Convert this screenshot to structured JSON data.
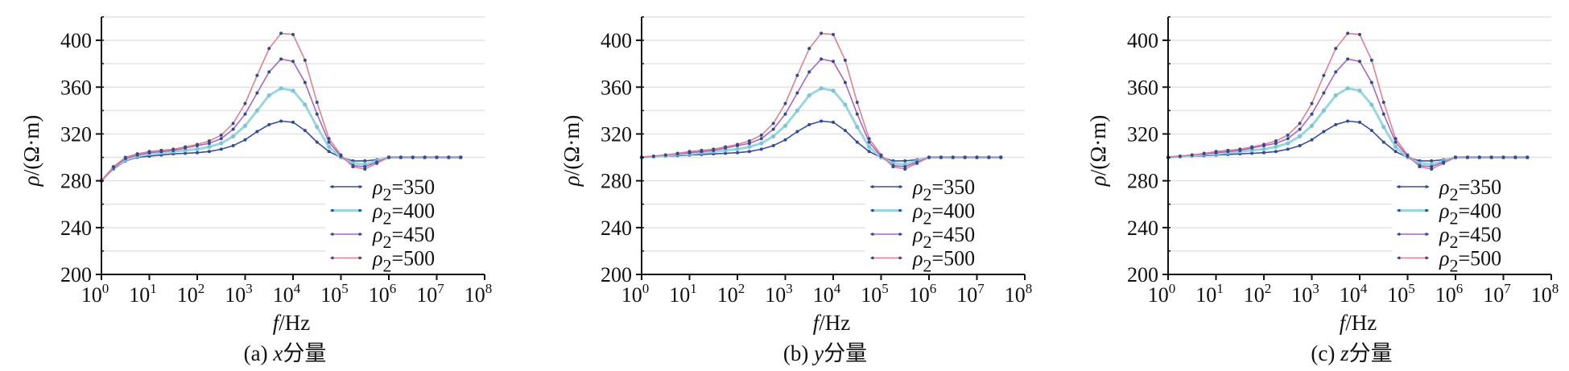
{
  "chart_data": [
    {
      "type": "line",
      "caption": {
        "prefix": "(a) ",
        "var": "x",
        "suffix": "分量"
      },
      "xlabel": {
        "var": "f",
        "unit": "/Hz"
      },
      "ylabel": {
        "var": "ρ",
        "unit": "/(Ω·m)"
      },
      "xscale": "log",
      "xlim_log10": [
        0,
        8
      ],
      "x_tick_base": "10",
      "x_tick_exponents": [
        "0",
        "1",
        "2",
        "3",
        "4",
        "5",
        "6",
        "7",
        "8"
      ],
      "ylim": [
        200,
        420
      ],
      "y_ticks": [
        "200",
        "240",
        "280",
        "320",
        "360",
        "400"
      ],
      "grid": true,
      "legend_placement": "bottom-right",
      "x_log10": [
        0,
        0.25,
        0.5,
        0.75,
        1,
        1.25,
        1.5,
        1.75,
        2,
        2.25,
        2.5,
        2.75,
        3,
        3.25,
        3.5,
        3.75,
        4,
        4.25,
        4.5,
        4.75,
        5,
        5.25,
        5.5,
        5.75,
        6,
        6.25,
        6.5,
        6.75,
        7,
        7.25,
        7.5
      ],
      "series": [
        {
          "symbol": "ρ",
          "subscript": "2",
          "value": "=350",
          "color": "#3b4ea3",
          "values": [
            280,
            290,
            297,
            300,
            301,
            302,
            303,
            303.5,
            304,
            305,
            307,
            310,
            315,
            322,
            328,
            331,
            330,
            323,
            313,
            305,
            300,
            297,
            297,
            298,
            300,
            300,
            300,
            300,
            300,
            300,
            300
          ]
        },
        {
          "symbol": "ρ",
          "subscript": "2",
          "value": "=400",
          "color": "#9ad6de",
          "values": [
            280,
            291,
            298,
            301,
            303,
            304,
            305,
            306,
            307,
            309,
            312,
            318,
            327,
            340,
            353,
            359,
            357,
            345,
            326,
            309,
            300,
            295,
            294,
            297,
            300,
            300,
            300,
            300,
            300,
            300,
            300
          ]
        },
        {
          "symbol": "ρ",
          "subscript": "2",
          "value": "=450",
          "color": "#a866c4",
          "values": [
            280,
            291,
            299,
            302,
            304,
            305,
            306,
            308,
            310,
            312,
            316,
            324,
            337,
            355,
            373,
            384,
            382,
            364,
            337,
            313,
            301,
            293,
            292,
            296,
            300,
            300,
            300,
            300,
            300,
            300,
            300
          ]
        },
        {
          "symbol": "ρ",
          "subscript": "2",
          "value": "=500",
          "color": "#e0808f",
          "values": [
            280,
            292,
            300,
            303,
            305,
            306,
            307,
            309,
            311,
            314,
            319,
            329,
            346,
            370,
            393,
            406,
            405,
            383,
            347,
            316,
            302,
            292,
            290,
            295,
            300,
            300,
            300,
            300,
            300,
            300,
            300
          ]
        }
      ]
    },
    {
      "type": "line",
      "caption": {
        "prefix": "(b) ",
        "var": "y",
        "suffix": "分量"
      },
      "xlabel": {
        "var": "f",
        "unit": "/Hz"
      },
      "ylabel": {
        "var": "ρ",
        "unit": "/(Ω·m)"
      },
      "xscale": "log",
      "xlim_log10": [
        0,
        8
      ],
      "x_tick_base": "10",
      "x_tick_exponents": [
        "0",
        "1",
        "2",
        "3",
        "4",
        "5",
        "6",
        "7",
        "8"
      ],
      "ylim": [
        200,
        420
      ],
      "y_ticks": [
        "200",
        "240",
        "280",
        "320",
        "360",
        "400"
      ],
      "grid": true,
      "legend_placement": "bottom-right",
      "x_log10": [
        0,
        0.25,
        0.5,
        0.75,
        1,
        1.25,
        1.5,
        1.75,
        2,
        2.25,
        2.5,
        2.75,
        3,
        3.25,
        3.5,
        3.75,
        4,
        4.25,
        4.5,
        4.75,
        5,
        5.25,
        5.5,
        5.75,
        6,
        6.25,
        6.5,
        6.75,
        7,
        7.25,
        7.5
      ],
      "series": [
        {
          "symbol": "ρ",
          "subscript": "2",
          "value": "=350",
          "color": "#3b4ea3",
          "values": [
            300,
            300.5,
            301,
            301.5,
            302,
            302.5,
            303,
            303.5,
            304,
            305,
            307,
            310,
            315,
            322,
            328,
            331,
            330,
            323,
            313,
            305,
            300,
            297,
            297,
            298,
            300,
            300,
            300,
            300,
            300,
            300,
            300
          ]
        },
        {
          "symbol": "ρ",
          "subscript": "2",
          "value": "=400",
          "color": "#9ad6de",
          "values": [
            300,
            300.7,
            301.5,
            302.5,
            303,
            304,
            305,
            306,
            307,
            309,
            312,
            318,
            327,
            340,
            353,
            359,
            357,
            345,
            326,
            309,
            300,
            295,
            294,
            297,
            300,
            300,
            300,
            300,
            300,
            300,
            300
          ]
        },
        {
          "symbol": "ρ",
          "subscript": "2",
          "value": "=450",
          "color": "#a866c4",
          "values": [
            300,
            301,
            302,
            303,
            304,
            305,
            306,
            308,
            310,
            312,
            316,
            324,
            337,
            355,
            373,
            384,
            382,
            364,
            337,
            313,
            301,
            293,
            292,
            296,
            300,
            300,
            300,
            300,
            300,
            300,
            300
          ]
        },
        {
          "symbol": "ρ",
          "subscript": "2",
          "value": "=500",
          "color": "#e0808f",
          "values": [
            300,
            301,
            302,
            303.5,
            305,
            306,
            307,
            309,
            311,
            314,
            319,
            329,
            346,
            370,
            393,
            406,
            405,
            383,
            347,
            316,
            302,
            292,
            290,
            295,
            300,
            300,
            300,
            300,
            300,
            300,
            300
          ]
        }
      ]
    },
    {
      "type": "line",
      "caption": {
        "prefix": "(c) ",
        "var": "z",
        "suffix": "分量"
      },
      "xlabel": {
        "var": "f",
        "unit": "/Hz"
      },
      "ylabel": {
        "var": "ρ",
        "unit": "/(Ω·m)"
      },
      "xscale": "log",
      "xlim_log10": [
        0,
        8
      ],
      "x_tick_base": "10",
      "x_tick_exponents": [
        "0",
        "1",
        "2",
        "3",
        "4",
        "5",
        "6",
        "7",
        "8"
      ],
      "ylim": [
        200,
        420
      ],
      "y_ticks": [
        "200",
        "240",
        "280",
        "320",
        "360",
        "400"
      ],
      "grid": true,
      "legend_placement": "bottom-right",
      "x_log10": [
        0,
        0.25,
        0.5,
        0.75,
        1,
        1.25,
        1.5,
        1.75,
        2,
        2.25,
        2.5,
        2.75,
        3,
        3.25,
        3.5,
        3.75,
        4,
        4.25,
        4.5,
        4.75,
        5,
        5.25,
        5.5,
        5.75,
        6,
        6.25,
        6.5,
        6.75,
        7,
        7.25,
        7.5
      ],
      "series": [
        {
          "symbol": "ρ",
          "subscript": "2",
          "value": "=350",
          "color": "#3b4ea3",
          "values": [
            300,
            300.5,
            301,
            301.5,
            302,
            302.5,
            303,
            303.5,
            304,
            305,
            307,
            310,
            315,
            322,
            328,
            331,
            330,
            323,
            313,
            305,
            300,
            297,
            297,
            298,
            300,
            300,
            300,
            300,
            300,
            300,
            300
          ]
        },
        {
          "symbol": "ρ",
          "subscript": "2",
          "value": "=400",
          "color": "#9ad6de",
          "values": [
            300,
            300.7,
            301.5,
            302.5,
            303,
            304,
            305,
            306,
            307,
            309,
            312,
            318,
            327,
            340,
            353,
            359,
            357,
            345,
            326,
            309,
            300,
            295,
            294,
            297,
            300,
            300,
            300,
            300,
            300,
            300,
            300
          ]
        },
        {
          "symbol": "ρ",
          "subscript": "2",
          "value": "=450",
          "color": "#a866c4",
          "values": [
            300,
            301,
            302,
            303,
            304,
            305,
            306,
            308,
            310,
            312,
            316,
            324,
            337,
            355,
            373,
            384,
            382,
            364,
            337,
            313,
            301,
            293,
            292,
            296,
            300,
            300,
            300,
            300,
            300,
            300,
            300
          ]
        },
        {
          "symbol": "ρ",
          "subscript": "2",
          "value": "=500",
          "color": "#e0808f",
          "values": [
            300,
            301,
            302,
            303.5,
            305,
            306,
            307,
            309,
            311,
            314,
            319,
            329,
            346,
            370,
            393,
            406,
            405,
            383,
            347,
            316,
            302,
            292,
            290,
            295,
            300,
            300,
            300,
            300,
            300,
            300,
            300
          ]
        }
      ]
    }
  ]
}
